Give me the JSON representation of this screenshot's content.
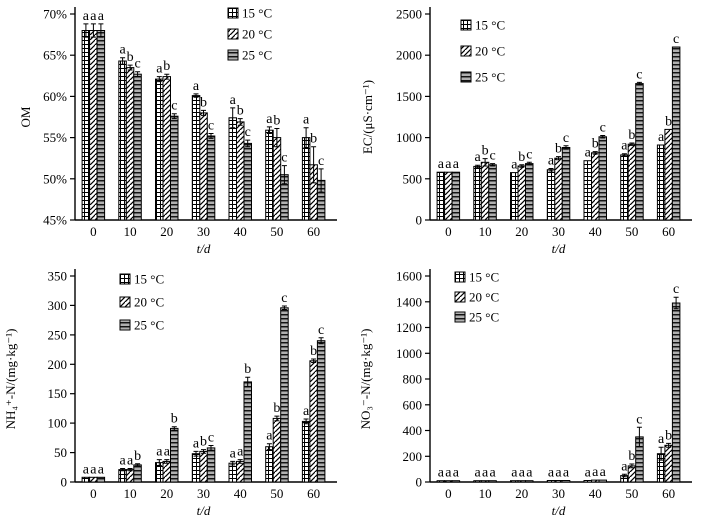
{
  "figure": {
    "background": "#ffffff",
    "ink_color": "#000000",
    "gray_fill": "#9c9c9c"
  },
  "chart_data": [
    {
      "type": "bar",
      "name": "om",
      "title": "",
      "xlabel": "t/d",
      "ylabel": "OM",
      "ylim": [
        45,
        70
      ],
      "ystep": 5,
      "ytick_suffix": "%",
      "grid": false,
      "legend_pos": {
        "x": 228,
        "y": 8,
        "dy": 21
      },
      "ylabel_x": 30,
      "categories": [
        "0",
        "10",
        "20",
        "30",
        "40",
        "50",
        "60"
      ],
      "series": [
        {
          "name": "15 °C",
          "pattern": "grid",
          "values": [
            68.0,
            64.3,
            62.1,
            60.1,
            57.4,
            55.9,
            55.0
          ],
          "errors": [
            0.8,
            0.4,
            0.3,
            0.2,
            1.2,
            0.4,
            1.2
          ]
        },
        {
          "name": "20 °C",
          "pattern": "diag",
          "values": [
            68.0,
            63.5,
            62.4,
            58.0,
            56.9,
            55.0,
            51.7
          ],
          "errors": [
            0.8,
            0.3,
            0.3,
            0.3,
            0.4,
            1.1,
            2.2
          ]
        },
        {
          "name": "25 °C",
          "pattern": "hlines",
          "values": [
            68.0,
            62.7,
            57.6,
            55.2,
            54.3,
            50.5,
            49.8
          ],
          "errors": [
            0.8,
            0.3,
            0.3,
            0.3,
            0.4,
            1.1,
            1.4
          ]
        }
      ],
      "letters": [
        [
          "a",
          "a",
          "a"
        ],
        [
          "a",
          "b",
          "c"
        ],
        [
          "a",
          "b",
          "c"
        ],
        [
          "a",
          "b",
          "c"
        ],
        [
          "a",
          "b",
          "c"
        ],
        [
          "a",
          "b",
          "c"
        ],
        [
          "a",
          "b",
          "c"
        ]
      ]
    },
    {
      "type": "bar",
      "name": "ec",
      "title": "",
      "xlabel": "t/d",
      "ylabel": "EC/(μS·cm⁻¹)",
      "ylim": [
        0,
        2500
      ],
      "ystep": 500,
      "ytick_suffix": "",
      "grid": false,
      "legend_pos": {
        "x": 106,
        "y": 20,
        "dy": 26
      },
      "ylabel_x": 17,
      "categories": [
        "0",
        "10",
        "20",
        "30",
        "40",
        "50",
        "60"
      ],
      "series": [
        {
          "name": "15 °C",
          "pattern": "grid",
          "values": [
            580,
            650,
            575,
            610,
            720,
            790,
            910
          ],
          "errors": [
            0,
            15,
            0,
            15,
            0,
            15,
            0
          ]
        },
        {
          "name": "20 °C",
          "pattern": "diag",
          "values": [
            580,
            700,
            655,
            750,
            815,
            920,
            1100
          ],
          "errors": [
            0,
            45,
            15,
            20,
            15,
            15,
            0
          ]
        },
        {
          "name": "25 °C",
          "pattern": "hlines",
          "values": [
            580,
            670,
            685,
            880,
            1010,
            1655,
            2100
          ],
          "errors": [
            0,
            15,
            15,
            20,
            15,
            15,
            0
          ]
        }
      ],
      "letters": [
        [
          "a",
          "a",
          "a"
        ],
        [
          "a",
          "b",
          "c"
        ],
        [
          "a",
          "b",
          "c"
        ],
        [
          "a",
          "b",
          "c"
        ],
        [
          "a",
          "b",
          "c"
        ],
        [
          "a",
          "b",
          "c"
        ],
        [
          "a",
          "b",
          "c"
        ]
      ]
    },
    {
      "type": "bar",
      "name": "nh4n",
      "title": "",
      "xlabel": "t/d",
      "ylabel": "NH₄⁺-N/(mg·kg⁻¹)",
      "ylim": [
        0,
        350
      ],
      "ystep": 50,
      "ytick_suffix": "",
      "grid": false,
      "legend_pos": {
        "x": 120,
        "y": 12,
        "dy": 23
      },
      "ylabel_x": 15,
      "categories": [
        "0",
        "10",
        "20",
        "30",
        "40",
        "50",
        "60"
      ],
      "series": [
        {
          "name": "15 °C",
          "pattern": "grid",
          "values": [
            8,
            21,
            33,
            48,
            32,
            60,
            103
          ],
          "errors": [
            0,
            2,
            5,
            4,
            3,
            5,
            4
          ]
        },
        {
          "name": "20 °C",
          "pattern": "diag",
          "values": [
            8,
            21,
            35,
            52,
            35,
            108,
            206
          ],
          "errors": [
            0,
            2,
            3,
            3,
            3,
            4,
            3
          ]
        },
        {
          "name": "25 °C",
          "pattern": "hlines",
          "values": [
            8,
            29,
            91,
            58,
            170,
            296,
            240
          ],
          "errors": [
            0,
            2,
            3,
            4,
            8,
            3,
            5
          ]
        }
      ],
      "letters": [
        [
          "a",
          "a",
          "a"
        ],
        [
          "a",
          "a",
          "b"
        ],
        [
          "a",
          "a",
          "b"
        ],
        [
          "a",
          "b",
          "c"
        ],
        [
          "a",
          "a",
          "b"
        ],
        [
          "a",
          "b",
          "c"
        ],
        [
          "a",
          "b",
          "c"
        ]
      ]
    },
    {
      "type": "bar",
      "name": "no3n",
      "title": "",
      "xlabel": "t/d",
      "ylabel": "NO₃⁻-N/(mg·kg⁻¹)",
      "ylim": [
        0,
        1600
      ],
      "ystep": 200,
      "ytick_suffix": "",
      "grid": false,
      "legend_pos": {
        "x": 100,
        "y": 10,
        "dy": 20
      },
      "ylabel_x": 15,
      "categories": [
        "0",
        "10",
        "20",
        "30",
        "40",
        "50",
        "60"
      ],
      "series": [
        {
          "name": "15 °C",
          "pattern": "grid",
          "values": [
            10,
            10,
            10,
            12,
            12,
            50,
            220
          ],
          "errors": [
            0,
            0,
            0,
            0,
            0,
            10,
            50
          ]
        },
        {
          "name": "20 °C",
          "pattern": "diag",
          "values": [
            10,
            10,
            10,
            12,
            15,
            125,
            285
          ],
          "errors": [
            0,
            0,
            0,
            0,
            0,
            15,
            15
          ]
        },
        {
          "name": "25 °C",
          "pattern": "hlines",
          "values": [
            10,
            10,
            10,
            12,
            15,
            350,
            1390
          ],
          "errors": [
            0,
            0,
            0,
            0,
            0,
            75,
            45
          ]
        }
      ],
      "letters": [
        [
          "a",
          "a",
          "a"
        ],
        [
          "a",
          "a",
          "a"
        ],
        [
          "a",
          "a",
          "a"
        ],
        [
          "a",
          "a",
          "a"
        ],
        [
          "a",
          "a",
          "a"
        ],
        [
          "a",
          "b",
          "c"
        ],
        [
          "a",
          "b",
          "c"
        ]
      ]
    }
  ]
}
